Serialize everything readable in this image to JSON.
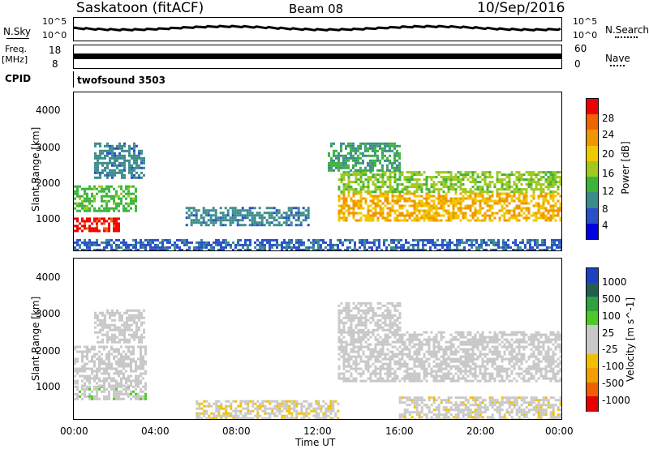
{
  "header": {
    "station": "Saskatoon (fitACF)",
    "beam": "Beam 08",
    "date": "10/Sep/2016"
  },
  "top_panels": {
    "nsky_label": "N.Sky",
    "nsky_ticks": [
      "10^5",
      "10^0"
    ],
    "nsearch_label": "N.Search",
    "nsearch_ticks": [
      "10^5",
      "10^0"
    ],
    "freq_label": "Freq.",
    "freq_unit": "[MHz]",
    "freq_ticks": [
      "18",
      "8"
    ],
    "nave_label": "Nave",
    "nave_ticks": [
      "60",
      "0"
    ],
    "cpid_label": "CPID",
    "cpid_value": "twofsound 3503"
  },
  "colors": {
    "power_scale": [
      "#0000e0",
      "#2850c8",
      "#3c8c8c",
      "#3cb43c",
      "#a0c81e",
      "#f0c800",
      "#f09600",
      "#f06400",
      "#f00000"
    ],
    "velocity_scale": [
      "#e60000",
      "#f06000",
      "#f0a000",
      "#f0c000",
      "#c8c8c8",
      "#c8c8c8",
      "#50c828",
      "#30a040",
      "#206050",
      "#2040c0"
    ]
  },
  "chart_data": [
    {
      "type": "heatmap",
      "title": "Power",
      "ylabel": "Slant Range [km]",
      "xlim": [
        "00:00",
        "24:00"
      ],
      "ylim": [
        180,
        4600
      ],
      "yticks": [
        "4000",
        "3000",
        "2000",
        "1000"
      ],
      "xticks": [
        "00:00",
        "04:00",
        "08:00",
        "12:00",
        "16:00",
        "20:00",
        "00:00"
      ],
      "colorbar": {
        "label": "Power [dB]",
        "ticks": [
          "28",
          "24",
          "20",
          "16",
          "12",
          "8",
          "4"
        ],
        "range": [
          0,
          30
        ]
      },
      "regions": [
        {
          "t0": 0.0,
          "t1": 2.2,
          "r0": 700,
          "r1": 1100,
          "value": 28
        },
        {
          "t0": 0.0,
          "t1": 3.0,
          "r0": 1300,
          "r1": 2000,
          "value": 12
        },
        {
          "t0": 1.0,
          "t1": 3.5,
          "r0": 2200,
          "r1": 3200,
          "value": 8
        },
        {
          "t0": 5.5,
          "t1": 11.5,
          "r0": 900,
          "r1": 1400,
          "value": 8
        },
        {
          "t0": 0.0,
          "t1": 24.0,
          "r0": 180,
          "r1": 500,
          "value": 6
        },
        {
          "t0": 13.0,
          "t1": 24.0,
          "r0": 1000,
          "r1": 1800,
          "value": 20
        },
        {
          "t0": 13.0,
          "t1": 24.0,
          "r0": 1800,
          "r1": 2400,
          "value": 14
        },
        {
          "t0": 12.5,
          "t1": 16.0,
          "r0": 2400,
          "r1": 3200,
          "value": 10
        }
      ]
    },
    {
      "type": "heatmap",
      "title": "Velocity",
      "ylabel": "Slant Range [km]",
      "xlabel": "Time UT",
      "xlim": [
        "00:00",
        "24:00"
      ],
      "ylim": [
        180,
        4600
      ],
      "yticks": [
        "4000",
        "3000",
        "2000",
        "1000"
      ],
      "xticks": [
        "00:00",
        "04:00",
        "08:00",
        "12:00",
        "16:00",
        "20:00",
        "00:00"
      ],
      "colorbar": {
        "label": "Velocity [m s^-1]",
        "ticks": [
          "1000",
          "500",
          "100",
          "25",
          "-25",
          "-100",
          "-500",
          "-1000"
        ],
        "range": [
          -1000,
          1000
        ]
      },
      "regions": [
        {
          "t0": 0.0,
          "t1": 3.5,
          "r0": 700,
          "r1": 1100,
          "value": 120
        },
        {
          "t0": 0.0,
          "t1": 3.5,
          "r0": 1100,
          "r1": 2200,
          "value": 10
        },
        {
          "t0": 1.0,
          "t1": 3.5,
          "r0": 2300,
          "r1": 3200,
          "value": 0
        },
        {
          "t0": 6.0,
          "t1": 13.0,
          "r0": 180,
          "r1": 700,
          "value": -150
        },
        {
          "t0": 13.0,
          "t1": 24.0,
          "r0": 1200,
          "r1": 2600,
          "value": 0
        },
        {
          "t0": 13.0,
          "t1": 16.0,
          "r0": 2600,
          "r1": 3400,
          "value": 0
        },
        {
          "t0": 16.0,
          "t1": 24.0,
          "r0": 180,
          "r1": 800,
          "value": -120
        }
      ]
    }
  ]
}
